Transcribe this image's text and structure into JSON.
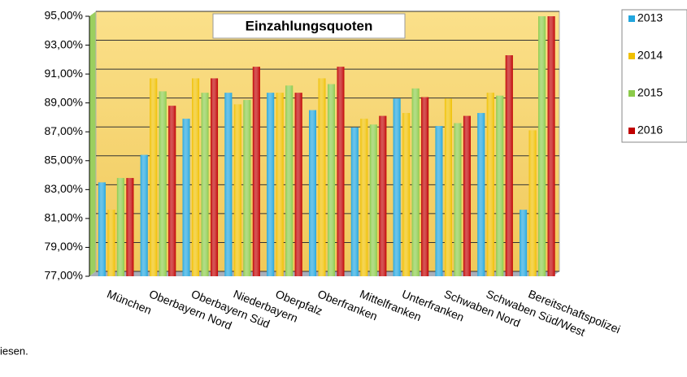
{
  "chart_data": {
    "type": "bar",
    "title": "Einzahlungsquoten",
    "categories": [
      "München",
      "Oberbayern Nord",
      "Oberbayern Süd",
      "Niederbayern",
      "Oberpfalz",
      "Oberfranken",
      "Mittelfranken",
      "Unterfranken",
      "Schwaben Nord",
      "Schwaben Süd/West",
      "Bereitschaftspolizei"
    ],
    "series": [
      {
        "name": "2013",
        "color": "#22a6de",
        "values": [
          83.5,
          85.4,
          87.9,
          89.7,
          89.7,
          88.5,
          87.3,
          89.3,
          87.4,
          88.3,
          81.6
        ]
      },
      {
        "name": "2014",
        "color": "#f0c000",
        "values": [
          81.6,
          90.7,
          90.7,
          88.9,
          89.7,
          90.7,
          87.9,
          88.3,
          89.3,
          89.7,
          87.1
        ]
      },
      {
        "name": "2015",
        "color": "#8ccb4a",
        "values": [
          83.8,
          89.8,
          89.7,
          89.2,
          90.2,
          90.3,
          87.5,
          90.0,
          87.6,
          89.5,
          95.0
        ]
      },
      {
        "name": "2016",
        "color": "#c00000",
        "values": [
          83.8,
          88.8,
          90.7,
          91.5,
          89.7,
          91.5,
          88.1,
          89.4,
          88.1,
          92.3,
          95.0
        ]
      }
    ],
    "ylim": [
      77,
      95
    ],
    "yticks": [
      {
        "value": 77,
        "label": "77,00%"
      },
      {
        "value": 79,
        "label": "79,00%"
      },
      {
        "value": 81,
        "label": "81,00%"
      },
      {
        "value": 83,
        "label": "83,00%"
      },
      {
        "value": 85,
        "label": "85,00%"
      },
      {
        "value": 87,
        "label": "87,00%"
      },
      {
        "value": 89,
        "label": "89,00%"
      },
      {
        "value": 91,
        "label": "91,00%"
      },
      {
        "value": 93,
        "label": "93,00%"
      },
      {
        "value": 95,
        "label": "95,00%"
      }
    ],
    "grid": true,
    "legend": "right",
    "footnote": "iesen."
  }
}
